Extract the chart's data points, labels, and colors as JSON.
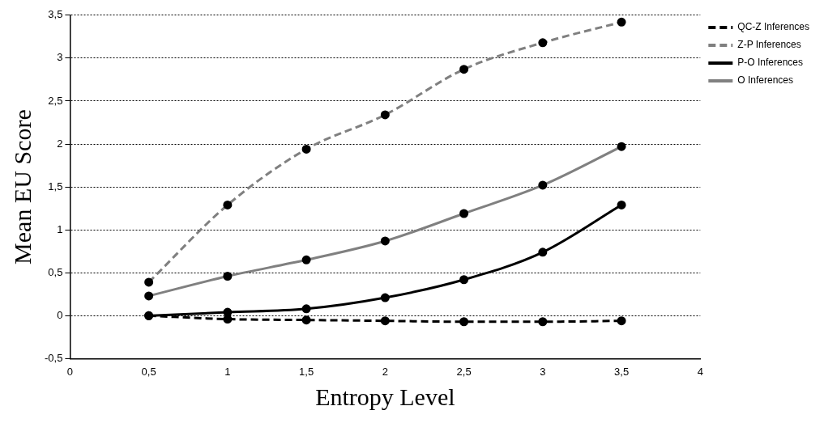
{
  "chart_data": {
    "type": "line",
    "xlabel": "Entropy Level",
    "ylabel": "Mean EU Score",
    "x": [
      0.5,
      1,
      1.5,
      2,
      2.5,
      3,
      3.5
    ],
    "series": [
      {
        "name": "QC-Z Inferences",
        "color": "#000000",
        "line_style": "dashed",
        "values": [
          0,
          -0.04,
          -0.05,
          -0.06,
          -0.07,
          -0.07,
          -0.06
        ]
      },
      {
        "name": "Z-P Inferences",
        "color": "#808080",
        "line_style": "dashed",
        "values": [
          0.39,
          1.29,
          1.94,
          2.34,
          2.87,
          3.18,
          3.42
        ]
      },
      {
        "name": "P-O Inferences",
        "color": "#000000",
        "line_style": "solid",
        "values": [
          0,
          0.04,
          0.08,
          0.21,
          0.42,
          0.74,
          1.29
        ]
      },
      {
        "name": "O Inferences",
        "color": "#808080",
        "line_style": "solid",
        "values": [
          0.23,
          0.46,
          0.65,
          0.87,
          1.19,
          1.52,
          1.97
        ]
      }
    ],
    "xlim": [
      0,
      4
    ],
    "xticks": [
      0,
      {
        "value": 0.5,
        "label": "0,5"
      },
      1,
      {
        "value": 1.5,
        "label": "1,5"
      },
      2,
      {
        "value": 2.5,
        "label": "2,5"
      },
      3,
      {
        "value": 3.5,
        "label": "3,5"
      },
      4
    ],
    "ylim": [
      -0.5,
      3.5
    ],
    "yticks": [
      {
        "value": -0.5,
        "label": "-0,5"
      },
      0,
      {
        "value": 0.5,
        "label": "0,5"
      },
      1,
      {
        "value": 1.5,
        "label": "1,5"
      },
      2,
      {
        "value": 2.5,
        "label": "2,5"
      },
      3,
      {
        "value": 3.5,
        "label": "3,5"
      }
    ],
    "grid": "y",
    "legend": "top right",
    "marker": "circle"
  }
}
